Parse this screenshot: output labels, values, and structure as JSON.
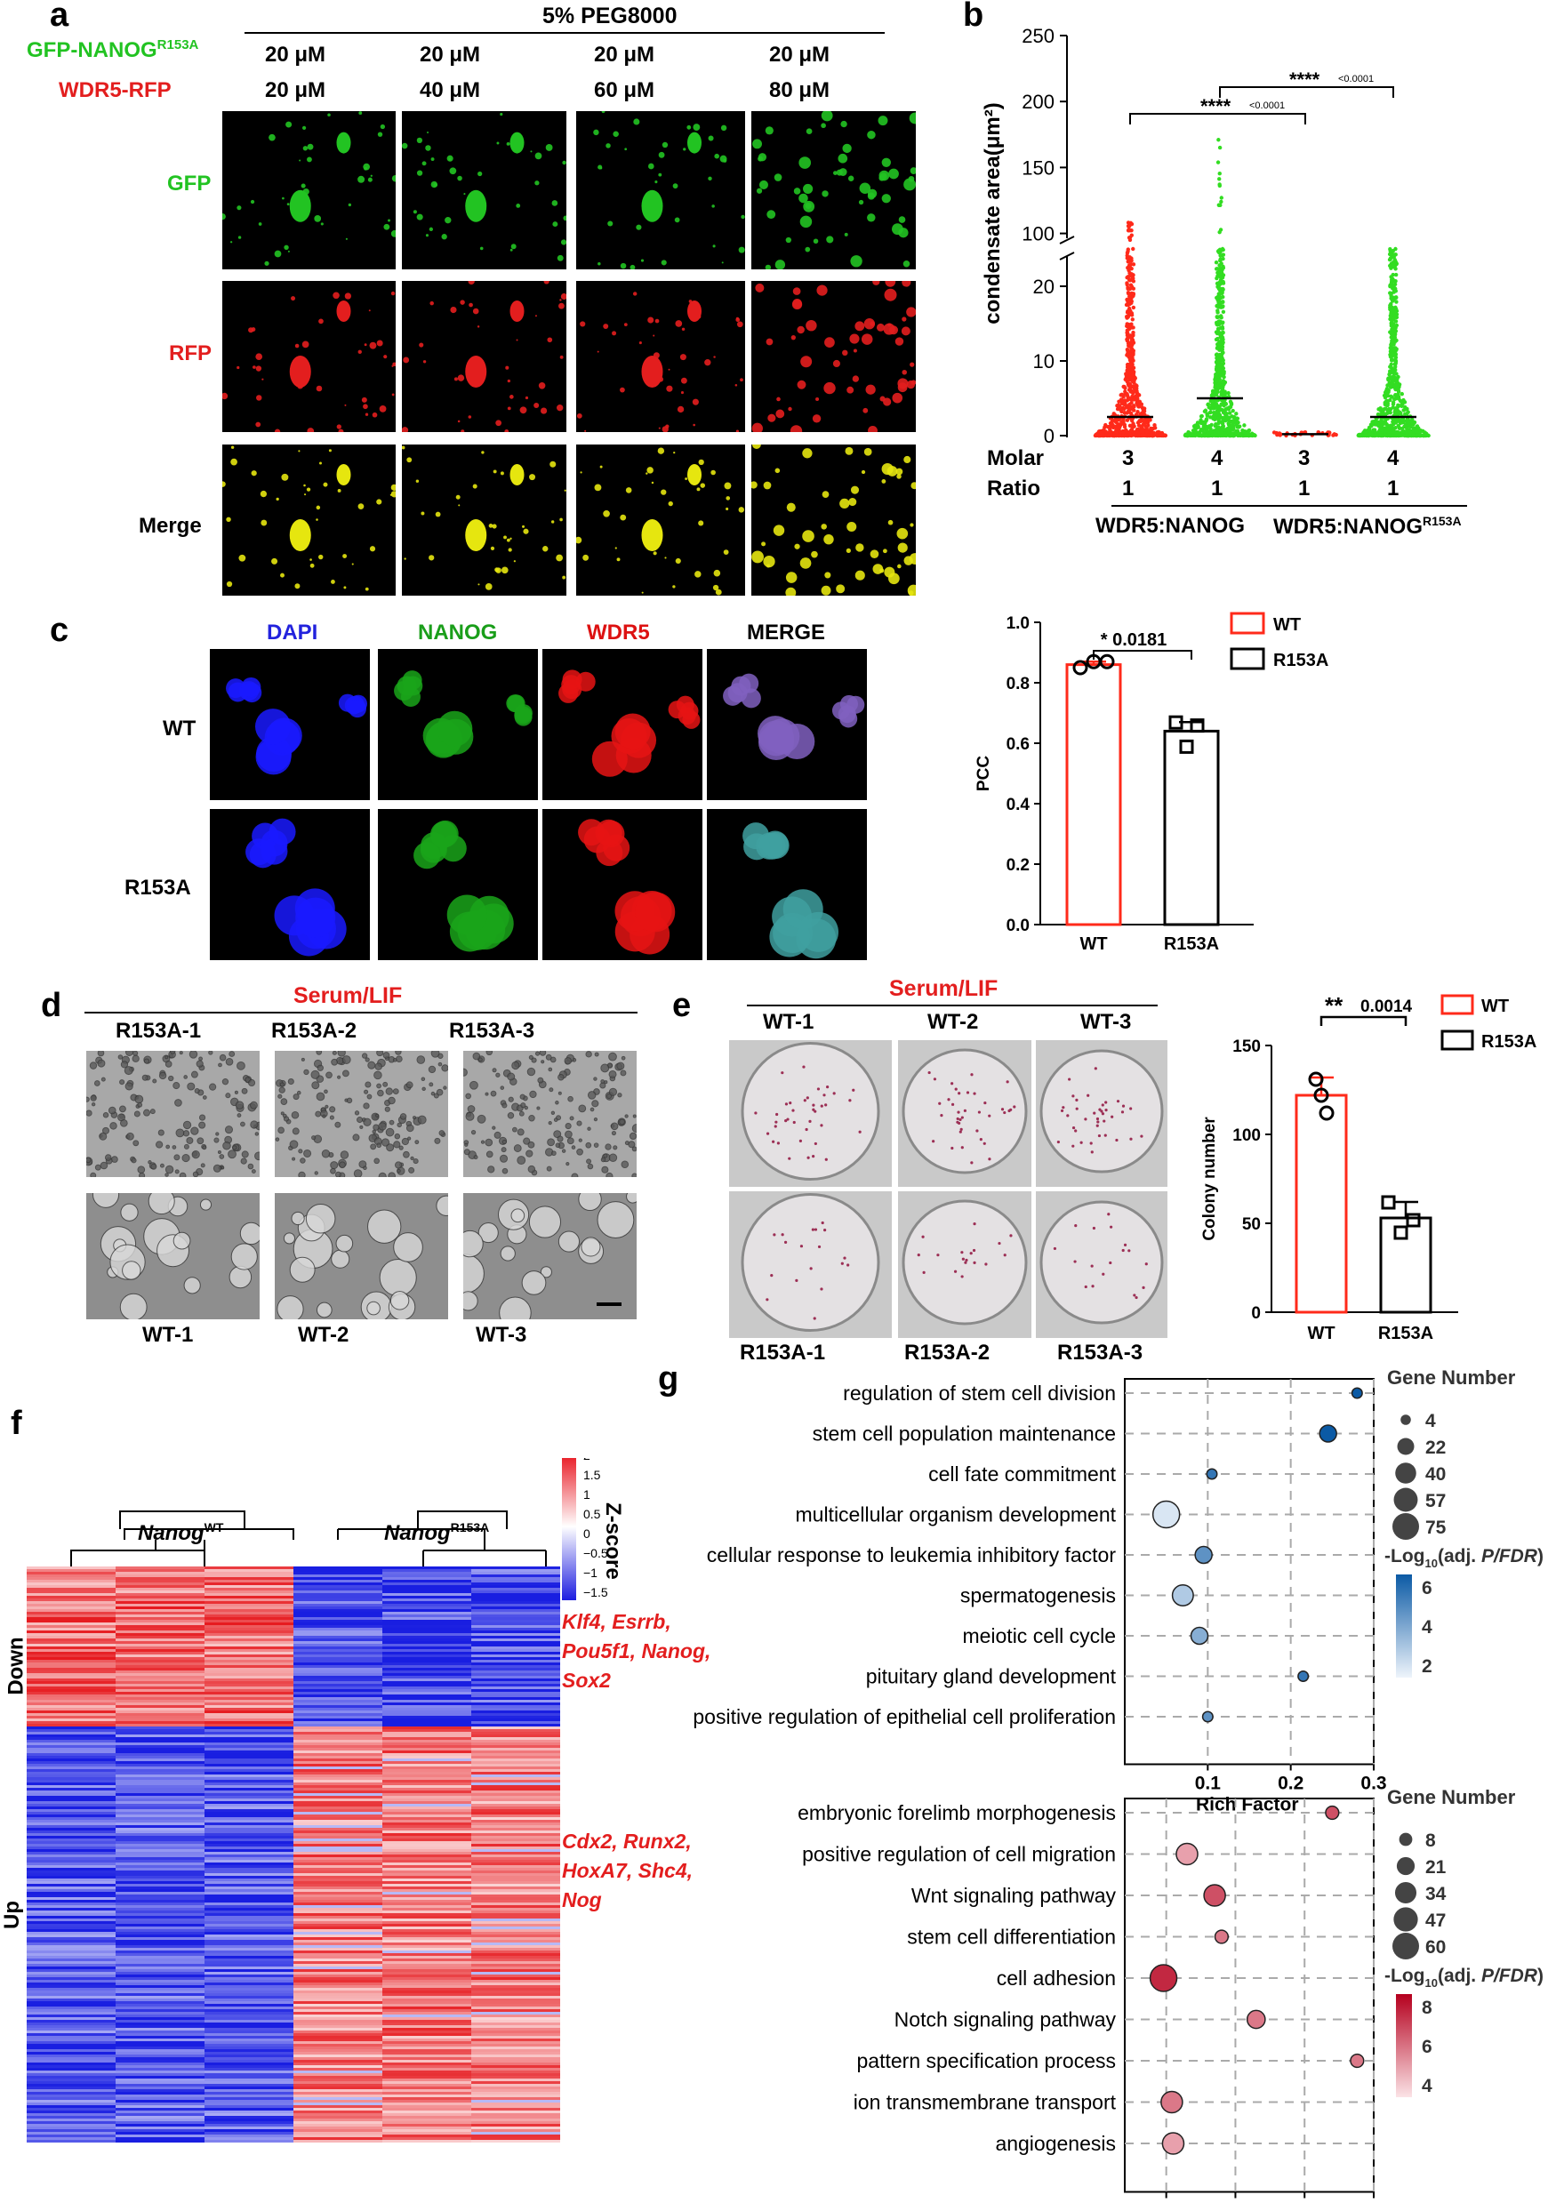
{
  "panel_a": {
    "letter": "a",
    "peg": "5% PEG8000",
    "protein1_label": "GFP-NANOG",
    "protein1_sup": "R153A",
    "protein2_label": "WDR5-RFP",
    "gfp_conc": [
      "20 μM",
      "20 μM",
      "20 μM",
      "20 μM"
    ],
    "rfp_conc": [
      "20 μM",
      "40 μM",
      "60 μM",
      "80 μM"
    ],
    "rows": [
      "GFP",
      "RFP",
      "Merge"
    ],
    "colors": {
      "gfp": "#22c322",
      "rfp": "#e31e1e",
      "merge": "#e6e60f"
    }
  },
  "panel_b": {
    "letter": "b",
    "ylabel": "condensate area(μm²)",
    "molar_label": "Molar",
    "ratio_label": "Ratio",
    "molar": [
      "3",
      "4",
      "3",
      "4"
    ],
    "ratio": [
      "1",
      "1",
      "1",
      "1"
    ],
    "group1": "WDR5:NANOG",
    "group2": "WDR5:NANOG",
    "group2_sup": "R153A",
    "sig1_stars": "****",
    "sig1_p": "<0.0001",
    "sig2_stars": "****",
    "sig2_p": "<0.0001"
  },
  "chart_data": [
    {
      "type": "scatter",
      "panel": "b",
      "ylabel": "condensate area(μm²)",
      "axis_break": [
        25,
        95
      ],
      "ylim": [
        0,
        250
      ],
      "yticks": [
        0,
        10,
        20,
        100,
        150,
        200,
        250
      ],
      "groups": [
        {
          "molar": "3",
          "ratio": "1",
          "construct": "WDR5:NANOG",
          "color": "#ff2a1a",
          "mean": 2.5,
          "max": 110
        },
        {
          "molar": "4",
          "ratio": "1",
          "construct": "WDR5:NANOG",
          "color": "#33dd22",
          "mean": 5,
          "max": 175
        },
        {
          "molar": "3",
          "ratio": "1",
          "construct": "WDR5:NANOG R153A",
          "color": "#ff2a1a",
          "mean": 0.2,
          "max": 0.5
        },
        {
          "molar": "4",
          "ratio": "1",
          "construct": "WDR5:NANOG R153A",
          "color": "#33dd22",
          "mean": 2.5,
          "max": 25
        }
      ]
    },
    {
      "type": "bar",
      "panel": "c",
      "ylabel": "PCC",
      "categories": [
        "WT",
        "R153A"
      ],
      "values": [
        0.86,
        0.64
      ],
      "points": [
        [
          0.85,
          0.87,
          0.87
        ],
        [
          0.67,
          0.59,
          0.66
        ]
      ],
      "sem": [
        0.01,
        0.03
      ],
      "ylim": [
        0,
        1.0
      ],
      "yticks": [
        "0.0",
        "0.2",
        "0.4",
        "0.6",
        "0.8",
        "1.0"
      ],
      "sig": "* 0.0181",
      "legend": [
        "WT",
        "R153A"
      ]
    },
    {
      "type": "bar",
      "panel": "e",
      "ylabel": "Colony number",
      "categories": [
        "WT",
        "R153A"
      ],
      "values": [
        122,
        53
      ],
      "points": [
        [
          131,
          122,
          112
        ],
        [
          62,
          45,
          52
        ]
      ],
      "sem": [
        10,
        9
      ],
      "ylim": [
        0,
        150
      ],
      "yticks": [
        "0",
        "50",
        "100",
        "150"
      ],
      "sig_stars": "**",
      "sig_p": "0.0014",
      "legend": [
        "WT",
        "R153A"
      ]
    },
    {
      "type": "scatter",
      "panel": "g-top",
      "xlabel": "Rich Factor",
      "xlim": [
        0,
        0.3
      ],
      "xticks": [
        "0.1",
        "0.2",
        "0.3"
      ],
      "terms": [
        {
          "label": "regulation of stem cell division",
          "x": 0.28,
          "size": 4,
          "fdr": 8
        },
        {
          "label": "stem cell population maintenance",
          "x": 0.245,
          "size": 22,
          "fdr": 8
        },
        {
          "label": "cell fate commitment",
          "x": 0.105,
          "size": 4,
          "fdr": 6
        },
        {
          "label": "multicellular organism development",
          "x": 0.05,
          "size": 75,
          "fdr": 2
        },
        {
          "label": "cellular response to leukemia inhibitory factor",
          "x": 0.095,
          "size": 22,
          "fdr": 5
        },
        {
          "label": "spermatogenesis",
          "x": 0.07,
          "size": 40,
          "fdr": 3
        },
        {
          "label": "meiotic cell cycle",
          "x": 0.09,
          "size": 22,
          "fdr": 4
        },
        {
          "label": "pituitary gland development",
          "x": 0.215,
          "size": 4,
          "fdr": 6
        },
        {
          "label": "positive regulation of epithelial cell proliferation",
          "x": 0.1,
          "size": 4,
          "fdr": 5
        }
      ],
      "size_legend_title": "Gene Number",
      "size_legend": [
        "4",
        "22",
        "40",
        "57",
        "75"
      ],
      "color_legend_title": "-Log",
      "color_legend_sub": "10",
      "color_legend_rest": "(adj. ",
      "color_legend_italic": "P/FDR",
      "color_legend_end": ")",
      "color_ticks": [
        "6",
        "4",
        "2"
      ]
    },
    {
      "type": "scatter",
      "panel": "g-bottom",
      "xlabel": "Rich Factor",
      "xlim": [
        0.07,
        0.25
      ],
      "xticks": [
        "0.1",
        "0.15",
        "0.2",
        "0.25"
      ],
      "terms": [
        {
          "label": "embryonic forelimb morphogenesis",
          "x": 0.22,
          "size": 8,
          "fdr": 7
        },
        {
          "label": "positive regulation of cell migration",
          "x": 0.115,
          "size": 34,
          "fdr": 5
        },
        {
          "label": "Wnt signaling pathway",
          "x": 0.135,
          "size": 34,
          "fdr": 7
        },
        {
          "label": "stem cell differentiation",
          "x": 0.14,
          "size": 8,
          "fdr": 6
        },
        {
          "label": "cell adhesion",
          "x": 0.098,
          "size": 60,
          "fdr": 8
        },
        {
          "label": "Notch signaling pathway",
          "x": 0.165,
          "size": 21,
          "fdr": 6
        },
        {
          "label": "pattern specification process",
          "x": 0.238,
          "size": 8,
          "fdr": 6
        },
        {
          "label": "ion transmembrane transport",
          "x": 0.104,
          "size": 34,
          "fdr": 6
        },
        {
          "label": "angiogenesis",
          "x": 0.105,
          "size": 34,
          "fdr": 5
        }
      ],
      "size_legend_title": "Gene Number",
      "size_legend": [
        "8",
        "21",
        "34",
        "47",
        "60"
      ],
      "color_legend_title": "-Log",
      "color_legend_sub": "10",
      "color_legend_rest": "(adj. ",
      "color_legend_italic": "P/FDR",
      "color_legend_end": ")",
      "color_ticks": [
        "8",
        "6",
        "4"
      ]
    },
    {
      "type": "heatmap",
      "panel": "f",
      "colorbar_title": "Z-score",
      "colorbar_ticks": [
        "2",
        "1.5",
        "1",
        "0.5",
        "0",
        "−0.5",
        "−1",
        "−1.5"
      ],
      "groups": [
        "Nanog WT",
        "Nanog R153A"
      ],
      "row_groups": [
        "Down",
        "Up"
      ]
    }
  ],
  "panel_c": {
    "letter": "c",
    "cols": [
      "DAPI",
      "NANOG",
      "WDR5",
      "MERGE"
    ],
    "col_colors": [
      "#2222dd",
      "#1a9e1a",
      "#dd1111",
      "#000000"
    ],
    "rows": [
      "WT",
      "R153A"
    ]
  },
  "panel_d": {
    "letter": "d",
    "condition": "Serum/LIF",
    "top": [
      "R153A-1",
      "R153A-2",
      "R153A-3"
    ],
    "bottom": [
      "WT-1",
      "WT-2",
      "WT-3"
    ]
  },
  "panel_e": {
    "letter": "e",
    "condition": "Serum/LIF",
    "top": [
      "WT-1",
      "WT-2",
      "WT-3"
    ],
    "bottom": [
      "R153A-1",
      "R153A-2",
      "R153A-3"
    ]
  },
  "panel_f": {
    "letter": "f",
    "wt_gene": "Nanog",
    "wt_sup": "WT",
    "mut_gene": "Nanog",
    "mut_sup": "R153A",
    "down_label": "Down",
    "up_label": "Up",
    "down_genes": [
      "Klf4, Esrrb,",
      "Pou5f1, Nanog,",
      "Sox2"
    ],
    "up_genes": [
      "Cdx2, Runx2,",
      "HoxA7, Shc4,",
      "Nog"
    ],
    "zscore_label": "Z-score"
  },
  "panel_g": {
    "letter": "g"
  }
}
